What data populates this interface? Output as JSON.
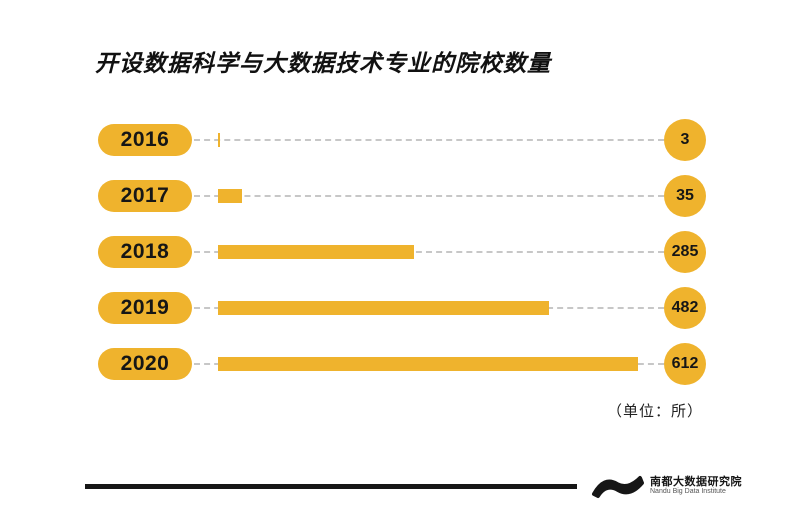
{
  "title": "开设数据科学与大数据技术专业的院校数量",
  "unit_label": "（单位：所）",
  "rows": [
    {
      "year": "2016",
      "value": "3"
    },
    {
      "year": "2017",
      "value": "35"
    },
    {
      "year": "2018",
      "value": "285"
    },
    {
      "year": "2019",
      "value": "482"
    },
    {
      "year": "2020",
      "value": "612"
    }
  ],
  "chart_data": {
    "type": "bar",
    "orientation": "horizontal",
    "title": "开设数据科学与大数据技术专业的院校数量",
    "categories": [
      "2016",
      "2017",
      "2018",
      "2019",
      "2020"
    ],
    "values": [
      3,
      35,
      285,
      482,
      612
    ],
    "unit": "所",
    "xlim": [
      0,
      612
    ],
    "grid": false,
    "legend": false,
    "bar_color": "#EFB32D",
    "track_style": "dashed"
  },
  "colors": {
    "accent_yellow": "#EFB32D",
    "track_gray": "#C7C7C7",
    "ink": "#161616",
    "background": "#FFFFFF"
  },
  "footer": {
    "logo_cn": "南都大数据研究院",
    "logo_en": "Nandu Big Data Institute"
  }
}
